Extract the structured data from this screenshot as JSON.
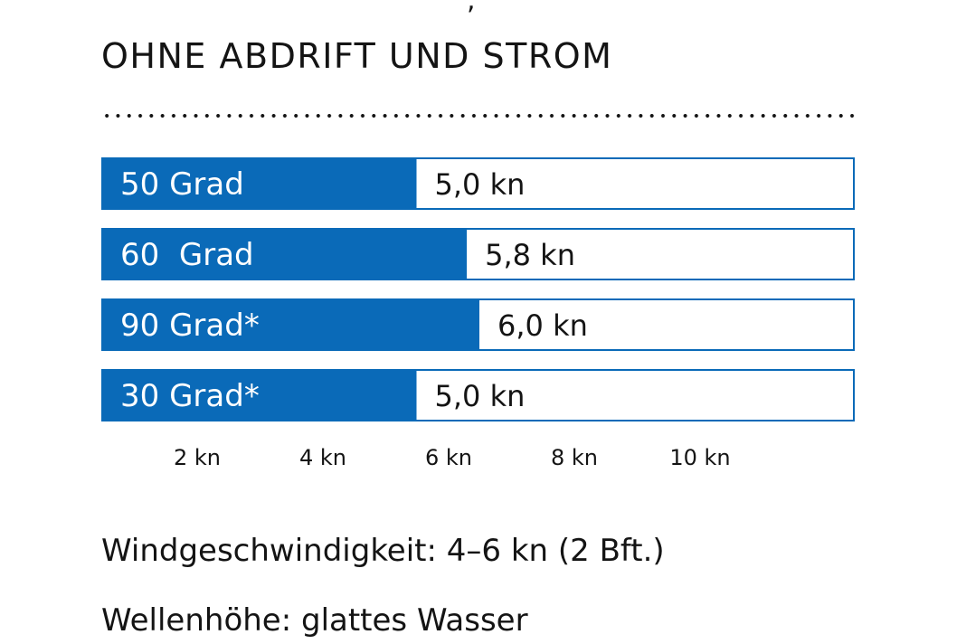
{
  "fragment_top": ",",
  "chart_data": {
    "type": "bar",
    "orientation": "horizontal",
    "title": "OHNE ABDRIFT UND STROM",
    "categories": [
      "50 Grad",
      "60  Grad",
      "90 Grad*",
      "30 Grad*"
    ],
    "values": [
      5.0,
      5.8,
      6.0,
      5.0
    ],
    "value_labels": [
      "5,0 kn",
      "5,8 kn",
      "6,0 kn",
      "5,0 kn"
    ],
    "unit": "kn",
    "xlim": [
      0,
      12
    ],
    "ticks": [
      2,
      4,
      6,
      8,
      10
    ],
    "tick_labels": [
      "2 kn",
      "4 kn",
      "6 kn",
      "8 kn",
      "10 kn"
    ],
    "grid": false,
    "colors": {
      "bar": "#0a6ab8",
      "track_border": "#0a6ab8",
      "bar_label": "#ffffff",
      "text": "#141414"
    }
  },
  "notes": {
    "wind": "Windgeschwindigkeit: 4–6 kn (2 Bft.)",
    "wave": "Wellenhöhe: glattes Wasser"
  }
}
